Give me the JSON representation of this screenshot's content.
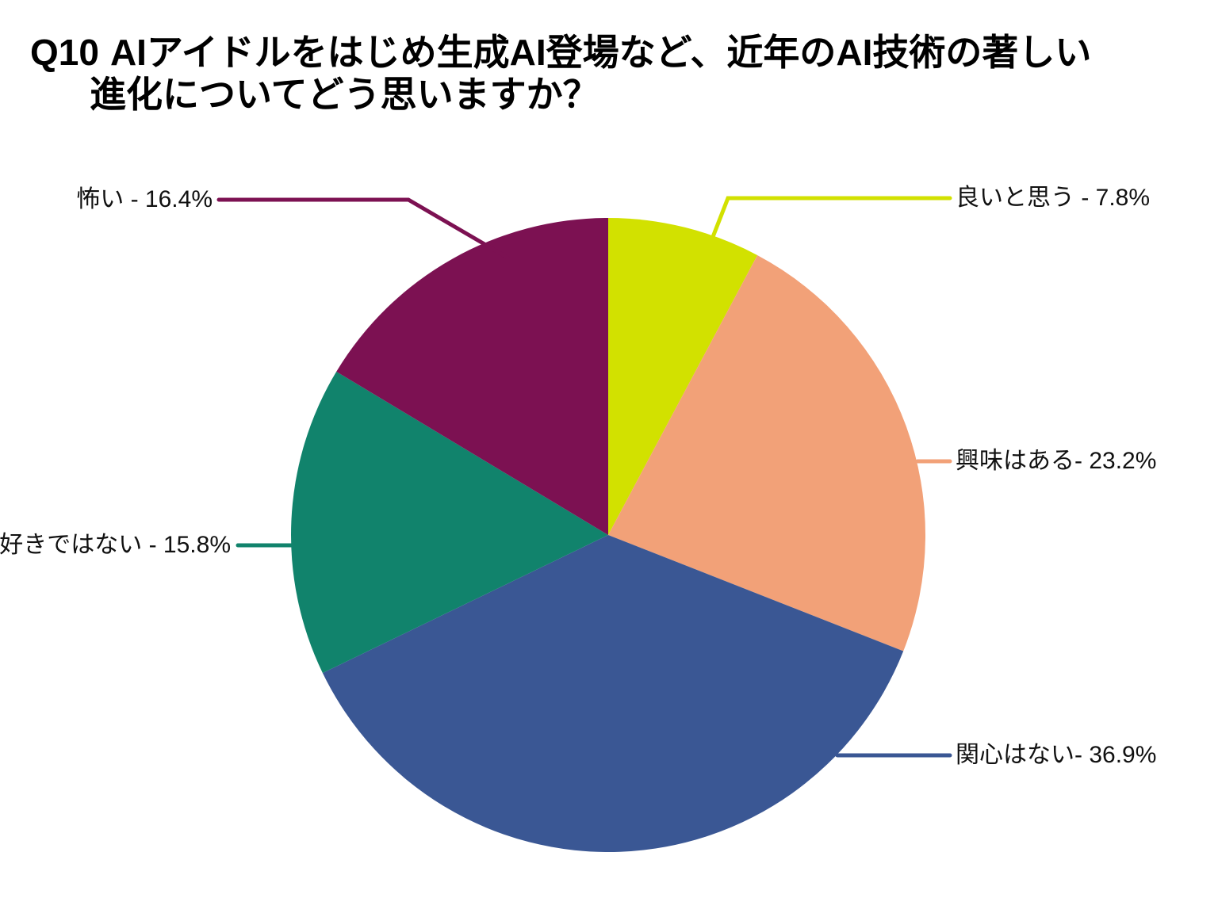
{
  "title": {
    "prefix": "Q10",
    "line1": "AIアイドルをはじめ生成AI登場など、近年のAI技術の著しい",
    "line2": "進化についてどう思いますか？"
  },
  "chart_data": {
    "type": "pie",
    "title": "Q10 AIアイドルをはじめ生成AI登場など、近年のAI技術の著しい進化についてどう思いますか？",
    "unit": "%",
    "start_angle_deg": 0,
    "direction": "clockwise",
    "legend_position": "none",
    "labels_style": "outside-with-leader-lines",
    "background_color": "#ffffff",
    "text_color": "#000000",
    "categories": [
      "良いと思う",
      "興味はある",
      "関心はない",
      "好きではない",
      "怖い"
    ],
    "values": [
      7.8,
      23.2,
      36.9,
      15.8,
      16.4
    ],
    "slices": [
      {
        "label": "良いと思う",
        "value": 7.8,
        "display": "良いと思う - 7.8%",
        "color": "#d2e100"
      },
      {
        "label": "興味はある",
        "value": 23.2,
        "display": "興味はある- 23.2%",
        "color": "#f2a178"
      },
      {
        "label": "関心はない",
        "value": 36.9,
        "display": "関心はない- 36.9%",
        "color": "#3a5794"
      },
      {
        "label": "好きではない",
        "value": 15.8,
        "display": "好きではない - 15.8%",
        "color": "#11836c"
      },
      {
        "label": "怖い",
        "value": 16.4,
        "display": "怖い - 16.4%",
        "color": "#7c1152"
      }
    ]
  }
}
